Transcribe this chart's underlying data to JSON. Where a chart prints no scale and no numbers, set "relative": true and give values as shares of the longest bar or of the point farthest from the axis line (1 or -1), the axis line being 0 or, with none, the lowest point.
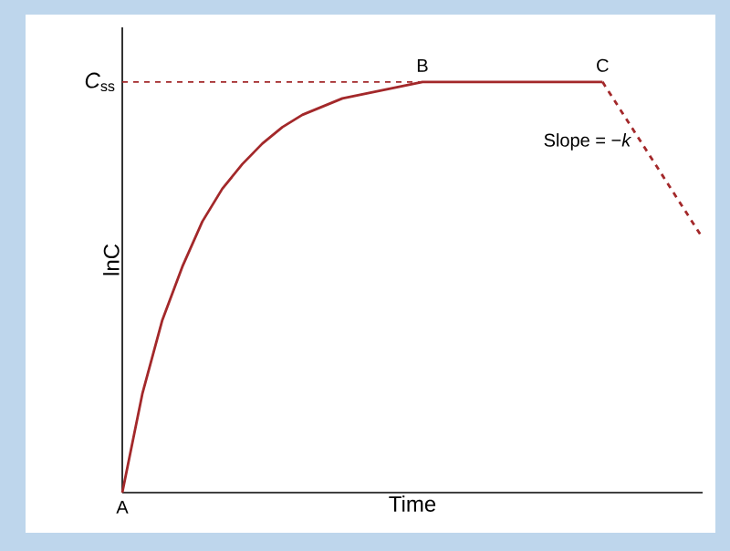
{
  "chart_data": {
    "type": "line",
    "relative": true,
    "xlabel": "Time",
    "ylabel": "lnC",
    "categories": [
      null,
      null,
      null,
      null,
      null,
      null,
      null,
      null,
      null,
      null,
      null,
      null,
      null,
      null,
      null,
      null,
      null,
      null,
      null,
      null,
      null,
      null,
      null,
      null,
      null,
      null,
      null,
      null,
      null,
      null
    ],
    "series": [
      {
        "color": "#a3282a",
        "line_style": "solid",
        "values": [
          0,
          0.24,
          0.42,
          0.55,
          0.66,
          0.74,
          0.8,
          0.85,
          0.89,
          0.92,
          0.94,
          0.96,
          0.97,
          0.98,
          0.99,
          1,
          1,
          1,
          1,
          1,
          1,
          1,
          1,
          1,
          1,
          null,
          null,
          null,
          null,
          null
        ]
      },
      {
        "color": "#a3282a",
        "line_style": "dashed",
        "values": [
          null,
          null,
          null,
          null,
          null,
          null,
          null,
          null,
          null,
          null,
          null,
          null,
          null,
          null,
          null,
          null,
          null,
          null,
          null,
          null,
          null,
          null,
          null,
          null,
          1,
          null,
          null,
          null,
          null,
          0.62
        ]
      }
    ],
    "ref_lines": [
      {
        "axis": "y",
        "value": 1,
        "label": "*C*$_{ss}$",
        "color": "#a3282a",
        "line_style": "dashed"
      }
    ],
    "annotations": [
      "A",
      "B",
      "C",
      "Slope = −*k*"
    ]
  }
}
